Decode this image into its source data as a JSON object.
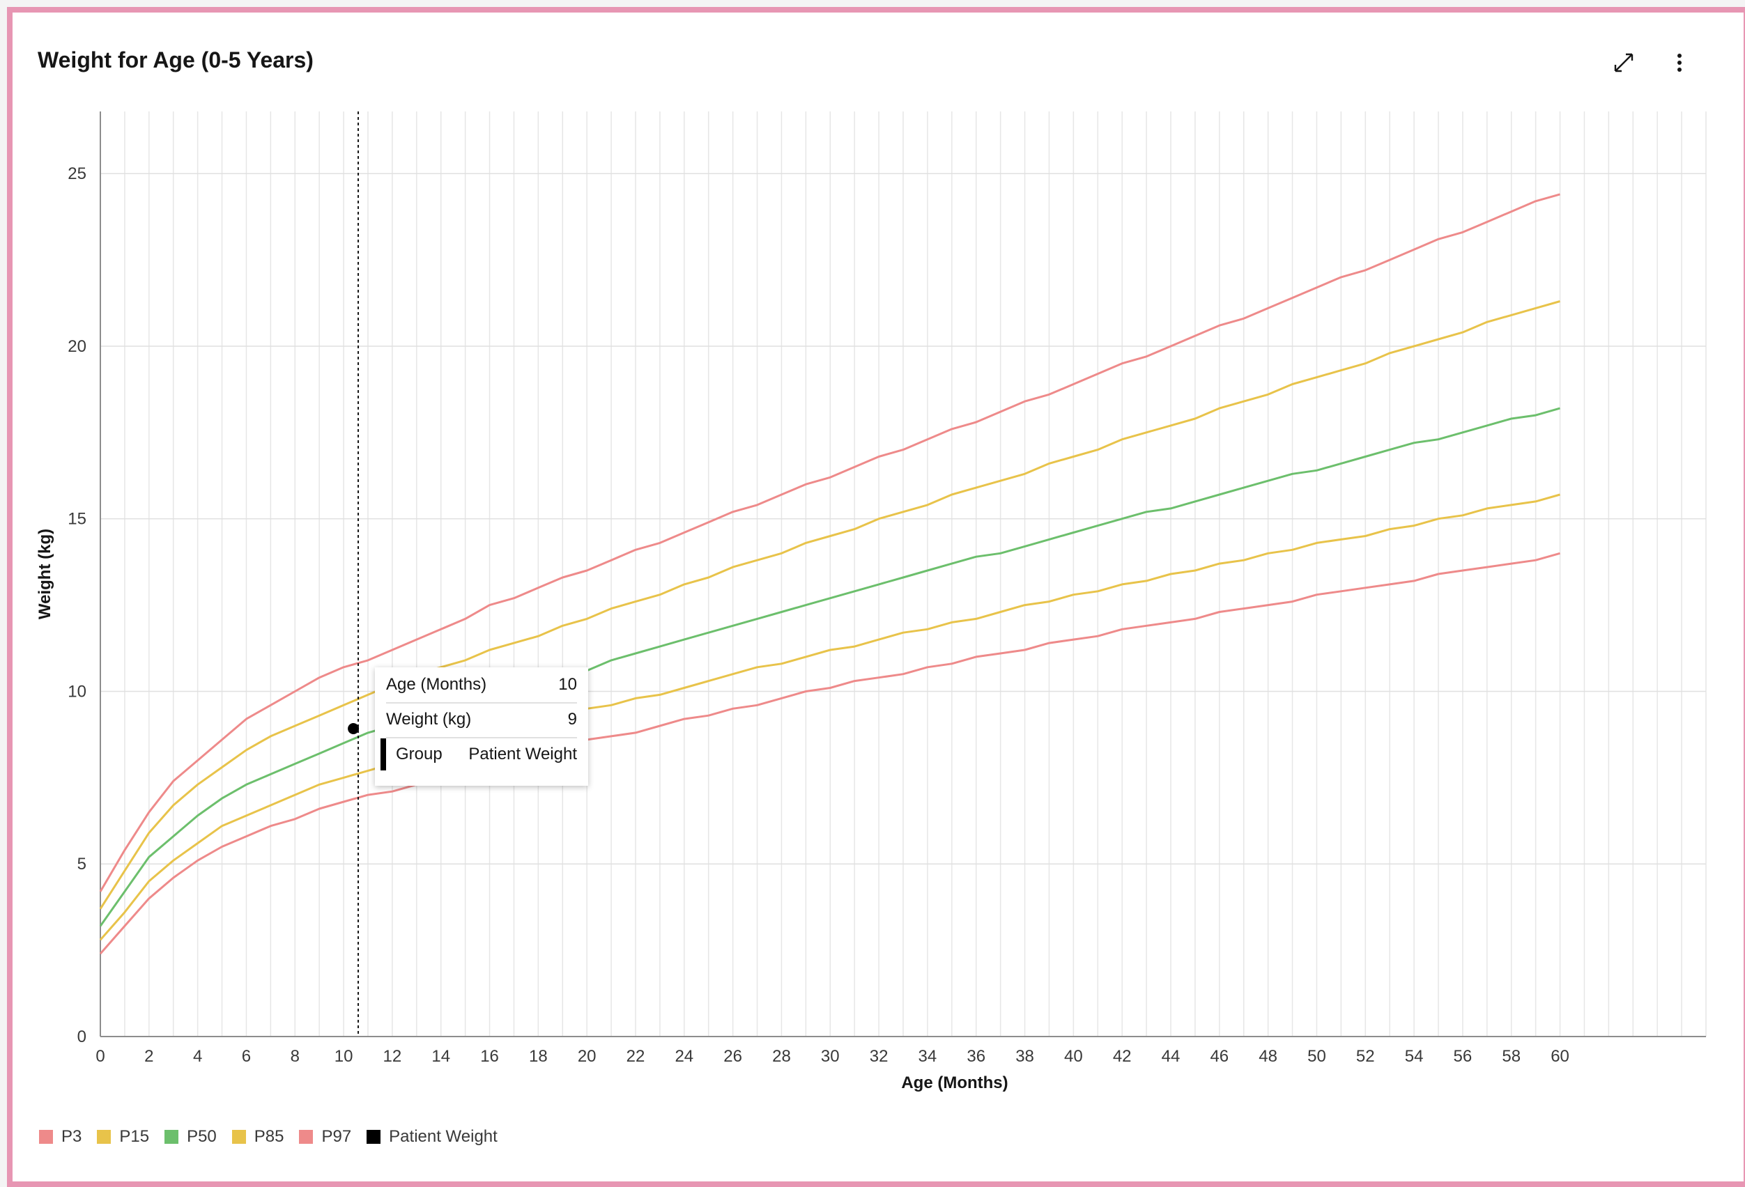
{
  "chart_data": {
    "type": "line",
    "title": "Weight for Age (0-5 Years)",
    "xlabel": "Age (Months)",
    "ylabel": "Weight (kg)",
    "xlim": [
      0,
      66
    ],
    "ylim": [
      0,
      26.8
    ],
    "x_ticks": [
      0,
      2,
      4,
      6,
      8,
      10,
      12,
      14,
      16,
      18,
      20,
      22,
      24,
      26,
      28,
      30,
      32,
      34,
      36,
      38,
      40,
      42,
      44,
      46,
      48,
      50,
      52,
      54,
      56,
      58,
      60
    ],
    "y_ticks": [
      0,
      5,
      10,
      15,
      20,
      25
    ],
    "grid": true,
    "legend_position": "bottom-left",
    "x": [
      0,
      1,
      2,
      3,
      4,
      5,
      6,
      7,
      8,
      9,
      10,
      11,
      12,
      13,
      14,
      15,
      16,
      17,
      18,
      19,
      20,
      21,
      22,
      23,
      24,
      25,
      26,
      27,
      28,
      29,
      30,
      31,
      32,
      33,
      34,
      35,
      36,
      37,
      38,
      39,
      40,
      41,
      42,
      43,
      44,
      45,
      46,
      47,
      48,
      49,
      50,
      51,
      52,
      53,
      54,
      55,
      56,
      57,
      58,
      59,
      60
    ],
    "series": [
      {
        "name": "P3",
        "color": "#ee8a8a",
        "values": [
          2.4,
          3.2,
          4.0,
          4.6,
          5.1,
          5.5,
          5.8,
          6.1,
          6.3,
          6.6,
          6.8,
          7.0,
          7.1,
          7.3,
          7.5,
          7.7,
          7.9,
          8.0,
          8.2,
          8.4,
          8.6,
          8.7,
          8.8,
          9.0,
          9.2,
          9.3,
          9.5,
          9.6,
          9.8,
          10.0,
          10.1,
          10.3,
          10.4,
          10.5,
          10.7,
          10.8,
          11.0,
          11.1,
          11.2,
          11.4,
          11.5,
          11.6,
          11.8,
          11.9,
          12.0,
          12.1,
          12.3,
          12.4,
          12.5,
          12.6,
          12.8,
          12.9,
          13.0,
          13.1,
          13.2,
          13.4,
          13.5,
          13.6,
          13.7,
          13.8,
          14.0
        ]
      },
      {
        "name": "P15",
        "color": "#e8c34a",
        "values": [
          2.8,
          3.6,
          4.5,
          5.1,
          5.6,
          6.1,
          6.4,
          6.7,
          7.0,
          7.3,
          7.5,
          7.7,
          7.9,
          8.1,
          8.3,
          8.5,
          8.7,
          8.9,
          9.1,
          9.3,
          9.5,
          9.6,
          9.8,
          9.9,
          10.1,
          10.3,
          10.5,
          10.7,
          10.8,
          11.0,
          11.2,
          11.3,
          11.5,
          11.7,
          11.8,
          12.0,
          12.1,
          12.3,
          12.5,
          12.6,
          12.8,
          12.9,
          13.1,
          13.2,
          13.4,
          13.5,
          13.7,
          13.8,
          14.0,
          14.1,
          14.3,
          14.4,
          14.5,
          14.7,
          14.8,
          15.0,
          15.1,
          15.3,
          15.4,
          15.5,
          15.7
        ]
      },
      {
        "name": "P50",
        "color": "#6cbf6c",
        "values": [
          3.2,
          4.2,
          5.2,
          5.8,
          6.4,
          6.9,
          7.3,
          7.6,
          7.9,
          8.2,
          8.5,
          8.8,
          9.0,
          9.2,
          9.4,
          9.6,
          9.8,
          10.0,
          10.2,
          10.4,
          10.6,
          10.9,
          11.1,
          11.3,
          11.5,
          11.7,
          11.9,
          12.1,
          12.3,
          12.5,
          12.7,
          12.9,
          13.1,
          13.3,
          13.5,
          13.7,
          13.9,
          14.0,
          14.2,
          14.4,
          14.6,
          14.8,
          15.0,
          15.2,
          15.3,
          15.5,
          15.7,
          15.9,
          16.1,
          16.3,
          16.4,
          16.6,
          16.8,
          17.0,
          17.2,
          17.3,
          17.5,
          17.7,
          17.9,
          18.0,
          18.2
        ]
      },
      {
        "name": "P85",
        "color": "#e8c34a",
        "values": [
          3.7,
          4.8,
          5.9,
          6.7,
          7.3,
          7.8,
          8.3,
          8.7,
          9.0,
          9.3,
          9.6,
          9.9,
          10.2,
          10.5,
          10.7,
          10.9,
          11.2,
          11.4,
          11.6,
          11.9,
          12.1,
          12.4,
          12.6,
          12.8,
          13.1,
          13.3,
          13.6,
          13.8,
          14.0,
          14.3,
          14.5,
          14.7,
          15.0,
          15.2,
          15.4,
          15.7,
          15.9,
          16.1,
          16.3,
          16.6,
          16.8,
          17.0,
          17.3,
          17.5,
          17.7,
          17.9,
          18.2,
          18.4,
          18.6,
          18.9,
          19.1,
          19.3,
          19.5,
          19.8,
          20.0,
          20.2,
          20.4,
          20.7,
          20.9,
          21.1,
          21.3
        ]
      },
      {
        "name": "P97",
        "color": "#ee8a8a",
        "values": [
          4.2,
          5.4,
          6.5,
          7.4,
          8.0,
          8.6,
          9.2,
          9.6,
          10.0,
          10.4,
          10.7,
          10.9,
          11.2,
          11.5,
          11.8,
          12.1,
          12.5,
          12.7,
          13.0,
          13.3,
          13.5,
          13.8,
          14.1,
          14.3,
          14.6,
          14.9,
          15.2,
          15.4,
          15.7,
          16.0,
          16.2,
          16.5,
          16.8,
          17.0,
          17.3,
          17.6,
          17.8,
          18.1,
          18.4,
          18.6,
          18.9,
          19.2,
          19.5,
          19.7,
          20.0,
          20.3,
          20.6,
          20.8,
          21.1,
          21.4,
          21.7,
          22.0,
          22.2,
          22.5,
          22.8,
          23.1,
          23.3,
          23.6,
          23.9,
          24.2,
          24.4
        ]
      },
      {
        "name": "Patient Weight",
        "color": "#000000",
        "type": "scatter",
        "points": [
          {
            "x": 10,
            "y": 9
          }
        ]
      }
    ],
    "crosshair_x": 10.6,
    "tooltip": {
      "age_label": "Age (Months)",
      "age_value": "10",
      "weight_label": "Weight (kg)",
      "weight_value": "9",
      "group_label": "Group",
      "group_value": "Patient Weight"
    }
  },
  "toolbar": {
    "expand_icon": "expand-icon",
    "menu_icon": "overflow-menu-vertical-icon"
  }
}
